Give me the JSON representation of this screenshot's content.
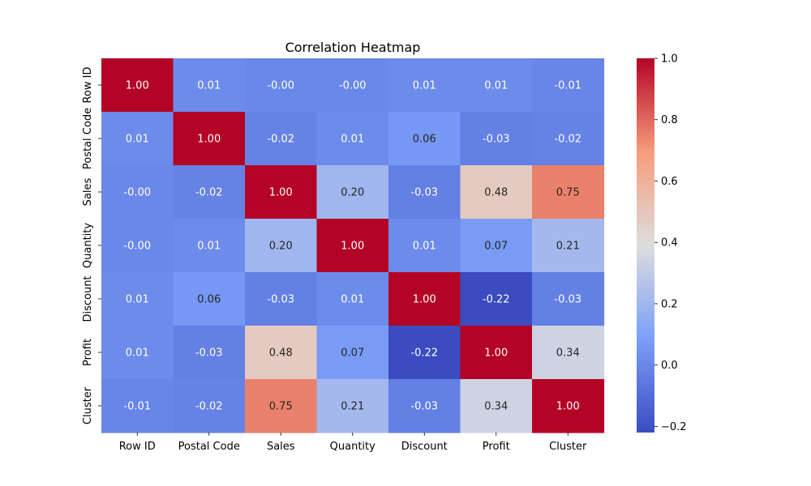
{
  "chart_data": {
    "type": "heatmap",
    "title": "Correlation Heatmap",
    "x_labels": [
      "Row ID",
      "Postal Code",
      "Sales",
      "Quantity",
      "Discount",
      "Profit",
      "Cluster"
    ],
    "y_labels": [
      "Row ID",
      "Postal Code",
      "Sales",
      "Quantity",
      "Discount",
      "Profit",
      "Cluster"
    ],
    "values": [
      [
        1.0,
        0.01,
        -0.0,
        -0.0,
        0.01,
        0.01,
        -0.01
      ],
      [
        0.01,
        1.0,
        -0.02,
        0.01,
        0.06,
        -0.03,
        -0.02
      ],
      [
        -0.0,
        -0.02,
        1.0,
        0.2,
        -0.03,
        0.48,
        0.75
      ],
      [
        -0.0,
        0.01,
        0.2,
        1.0,
        0.01,
        0.07,
        0.21
      ],
      [
        0.01,
        0.06,
        -0.03,
        0.01,
        1.0,
        -0.22,
        -0.03
      ],
      [
        0.01,
        -0.03,
        0.48,
        0.07,
        -0.22,
        1.0,
        0.34
      ],
      [
        -0.01,
        -0.02,
        0.75,
        0.21,
        -0.03,
        0.34,
        1.0
      ]
    ],
    "cell_text": [
      [
        "1.00",
        "0.01",
        "-0.00",
        "-0.00",
        "0.01",
        "0.01",
        "-0.01"
      ],
      [
        "0.01",
        "1.00",
        "-0.02",
        "0.01",
        "0.06",
        "-0.03",
        "-0.02"
      ],
      [
        "-0.00",
        "-0.02",
        "1.00",
        "0.20",
        "-0.03",
        "0.48",
        "0.75"
      ],
      [
        "-0.00",
        "0.01",
        "0.20",
        "1.00",
        "0.01",
        "0.07",
        "0.21"
      ],
      [
        "0.01",
        "0.06",
        "-0.03",
        "0.01",
        "1.00",
        "-0.22",
        "-0.03"
      ],
      [
        "0.01",
        "-0.03",
        "0.48",
        "0.07",
        "-0.22",
        "1.00",
        "0.34"
      ],
      [
        "-0.01",
        "-0.02",
        "0.75",
        "0.21",
        "-0.03",
        "0.34",
        "1.00"
      ]
    ],
    "colormap": "coolwarm",
    "vmin": -0.22,
    "vmax": 1.0,
    "colorbar": {
      "ticks": [
        -0.2,
        0.0,
        0.2,
        0.4,
        0.6,
        0.8,
        1.0
      ],
      "tick_labels": [
        "−0.2",
        "0.0",
        "0.2",
        "0.4",
        "0.6",
        "0.8",
        "1.0"
      ]
    },
    "grid": false,
    "legend": "colorbar right"
  }
}
